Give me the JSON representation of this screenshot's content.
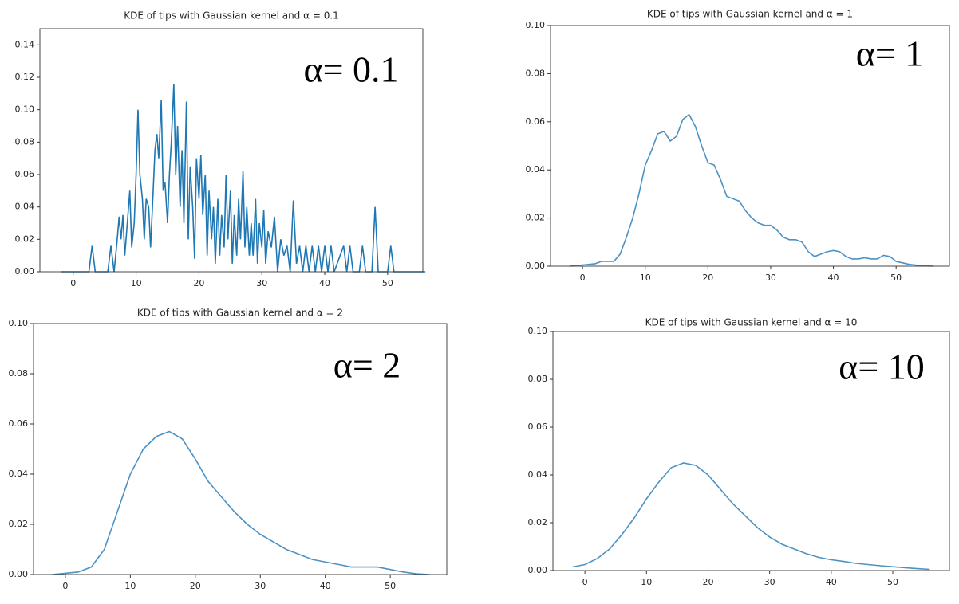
{
  "chart_data": [
    {
      "type": "line",
      "title": "KDE of tips with Gaussian kernel and α = 0.1",
      "annotation": "α= 0.1",
      "color": "#1f77b4",
      "xlim": [
        -5.3,
        55.6
      ],
      "ylim": [
        0,
        0.15
      ],
      "xticks": [
        0,
        10,
        20,
        30,
        40,
        50
      ],
      "yticks": [
        {
          "value": 0,
          "label": "0.00"
        },
        {
          "value": 0.02,
          "label": "0.02"
        },
        {
          "value": 0.04,
          "label": "0.04"
        },
        {
          "value": 0.06,
          "label": "0.06"
        },
        {
          "value": 0.08,
          "label": "0.08"
        },
        {
          "value": 0.1,
          "label": "0.10"
        },
        {
          "value": 0.12,
          "label": "0.12"
        },
        {
          "value": 0.14,
          "label": "0.14"
        }
      ],
      "x": [
        -2,
        2.5,
        3,
        3.5,
        5.5,
        6,
        6.5,
        7,
        7.3,
        7.6,
        7.9,
        8.2,
        8.6,
        9,
        9.3,
        9.7,
        10,
        10.3,
        10.6,
        11,
        11.3,
        11.6,
        12,
        12.3,
        12.6,
        13,
        13.3,
        13.6,
        14,
        14.3,
        14.6,
        15,
        15.3,
        15.6,
        16,
        16.3,
        16.6,
        17,
        17.3,
        17.6,
        18,
        18.3,
        18.6,
        19,
        19.3,
        19.6,
        20,
        20.3,
        20.6,
        21,
        21.3,
        21.6,
        22,
        22.3,
        22.6,
        23,
        23.3,
        23.6,
        24,
        24.3,
        24.6,
        25,
        25.3,
        25.6,
        26,
        26.3,
        26.6,
        27,
        27.3,
        27.6,
        28,
        28.3,
        28.6,
        29,
        29.3,
        29.6,
        30,
        30.3,
        30.6,
        31,
        31.5,
        32,
        32.5,
        33,
        33.5,
        34,
        34.5,
        35,
        35.5,
        36,
        36.5,
        37,
        37.5,
        38,
        38.5,
        39,
        39.5,
        40,
        40.5,
        41,
        41.5,
        43,
        43.5,
        44,
        44.5,
        45.5,
        46,
        46.5,
        47.5,
        48,
        48.5,
        50,
        50.5,
        51,
        56
      ],
      "values": [
        0,
        0,
        0.016,
        0,
        0,
        0.016,
        0,
        0.02,
        0.034,
        0.02,
        0.035,
        0.01,
        0.03,
        0.05,
        0.015,
        0.03,
        0.06,
        0.1,
        0.06,
        0.045,
        0.02,
        0.045,
        0.04,
        0.015,
        0.04,
        0.075,
        0.085,
        0.07,
        0.106,
        0.05,
        0.055,
        0.03,
        0.06,
        0.08,
        0.116,
        0.06,
        0.09,
        0.04,
        0.075,
        0.03,
        0.105,
        0.02,
        0.065,
        0.04,
        0.008,
        0.07,
        0.045,
        0.072,
        0.035,
        0.06,
        0.01,
        0.05,
        0.02,
        0.04,
        0.005,
        0.045,
        0.01,
        0.035,
        0.015,
        0.06,
        0.02,
        0.05,
        0.005,
        0.035,
        0.01,
        0.045,
        0.02,
        0.062,
        0.015,
        0.04,
        0.01,
        0.03,
        0.01,
        0.045,
        0.005,
        0.03,
        0.015,
        0.038,
        0.005,
        0.025,
        0.015,
        0.034,
        0,
        0.02,
        0.01,
        0.016,
        0,
        0.044,
        0.005,
        0.016,
        0,
        0.016,
        0,
        0.016,
        0,
        0.016,
        0,
        0.016,
        0,
        0.016,
        0,
        0.016,
        0,
        0.016,
        0,
        0,
        0.016,
        0,
        0,
        0.04,
        0,
        0,
        0.016,
        0,
        0
      ]
    },
    {
      "type": "line",
      "title": "KDE of tips with Gaussian kernel and α = 1",
      "annotation": "α= 1",
      "color": "#4c92c3",
      "xlim": [
        -5.1,
        58.5
      ],
      "ylim": [
        0,
        0.1
      ],
      "xticks": [
        0,
        10,
        20,
        30,
        40,
        50
      ],
      "yticks": [
        {
          "value": 0,
          "label": "0.00"
        },
        {
          "value": 0.02,
          "label": "0.02"
        },
        {
          "value": 0.04,
          "label": "0.04"
        },
        {
          "value": 0.06,
          "label": "0.06"
        },
        {
          "value": 0.08,
          "label": "0.08"
        },
        {
          "value": 0.1,
          "label": "0.10"
        }
      ],
      "x": [
        -2,
        0,
        2,
        3,
        5,
        6,
        7,
        8,
        9,
        10,
        11,
        12,
        13,
        14,
        15,
        16,
        17,
        18,
        19,
        20,
        21,
        22,
        23,
        24,
        25,
        26,
        27,
        28,
        29,
        30,
        31,
        32,
        33,
        34,
        35,
        36,
        37,
        38,
        39,
        40,
        41,
        42,
        43,
        44,
        45,
        46,
        47,
        48,
        49,
        50,
        52,
        54,
        56
      ],
      "values": [
        0,
        0.0005,
        0.001,
        0.002,
        0.002,
        0.005,
        0.012,
        0.02,
        0.03,
        0.042,
        0.048,
        0.055,
        0.056,
        0.052,
        0.054,
        0.061,
        0.063,
        0.058,
        0.05,
        0.043,
        0.042,
        0.036,
        0.029,
        0.028,
        0.027,
        0.023,
        0.02,
        0.018,
        0.017,
        0.017,
        0.015,
        0.012,
        0.011,
        0.011,
        0.01,
        0.006,
        0.004,
        0.005,
        0.006,
        0.0065,
        0.006,
        0.004,
        0.003,
        0.003,
        0.0035,
        0.003,
        0.003,
        0.0045,
        0.004,
        0.002,
        0.0008,
        0.0002,
        0
      ]
    },
    {
      "type": "line",
      "title": "KDE of tips with Gaussian kernel and α = 2",
      "annotation": "α= 2",
      "color": "#4c92c3",
      "xlim": [
        -4.9,
        58.7
      ],
      "ylim": [
        0,
        0.1
      ],
      "xticks": [
        0,
        10,
        20,
        30,
        40,
        50
      ],
      "yticks": [
        {
          "value": 0,
          "label": "0.00"
        },
        {
          "value": 0.02,
          "label": "0.02"
        },
        {
          "value": 0.04,
          "label": "0.04"
        },
        {
          "value": 0.06,
          "label": "0.06"
        },
        {
          "value": 0.08,
          "label": "0.08"
        },
        {
          "value": 0.1,
          "label": "0.10"
        }
      ],
      "x": [
        -2,
        0,
        2,
        4,
        6,
        8,
        10,
        12,
        14,
        16,
        18,
        20,
        22,
        24,
        26,
        28,
        30,
        32,
        34,
        36,
        38,
        40,
        42,
        44,
        46,
        48,
        50,
        52,
        54,
        56
      ],
      "values": [
        0,
        0.0005,
        0.001,
        0.003,
        0.01,
        0.025,
        0.04,
        0.05,
        0.055,
        0.057,
        0.054,
        0.046,
        0.037,
        0.031,
        0.025,
        0.02,
        0.016,
        0.013,
        0.01,
        0.008,
        0.006,
        0.005,
        0.004,
        0.003,
        0.003,
        0.003,
        0.002,
        0.001,
        0.0003,
        0
      ]
    },
    {
      "type": "line",
      "title": "KDE of tips with Gaussian kernel and α = 10",
      "annotation": "α= 10",
      "color": "#4c92c3",
      "xlim": [
        -5.2,
        59.2
      ],
      "ylim": [
        0,
        0.1
      ],
      "xticks": [
        0,
        10,
        20,
        30,
        40,
        50
      ],
      "yticks": [
        {
          "value": 0,
          "label": "0.00"
        },
        {
          "value": 0.02,
          "label": "0.02"
        },
        {
          "value": 0.04,
          "label": "0.04"
        },
        {
          "value": 0.06,
          "label": "0.06"
        },
        {
          "value": 0.08,
          "label": "0.08"
        },
        {
          "value": 0.1,
          "label": "0.10"
        }
      ],
      "x": [
        -2,
        0,
        2,
        4,
        6,
        8,
        10,
        12,
        14,
        16,
        18,
        20,
        22,
        24,
        26,
        28,
        30,
        32,
        34,
        36,
        38,
        40,
        42,
        44,
        46,
        48,
        50,
        52,
        54,
        56
      ],
      "values": [
        0.0015,
        0.0025,
        0.005,
        0.009,
        0.015,
        0.022,
        0.03,
        0.037,
        0.043,
        0.045,
        0.044,
        0.04,
        0.034,
        0.028,
        0.023,
        0.018,
        0.014,
        0.011,
        0.009,
        0.007,
        0.0055,
        0.0045,
        0.0038,
        0.003,
        0.0025,
        0.002,
        0.0016,
        0.0012,
        0.0008,
        0.0005
      ]
    }
  ]
}
